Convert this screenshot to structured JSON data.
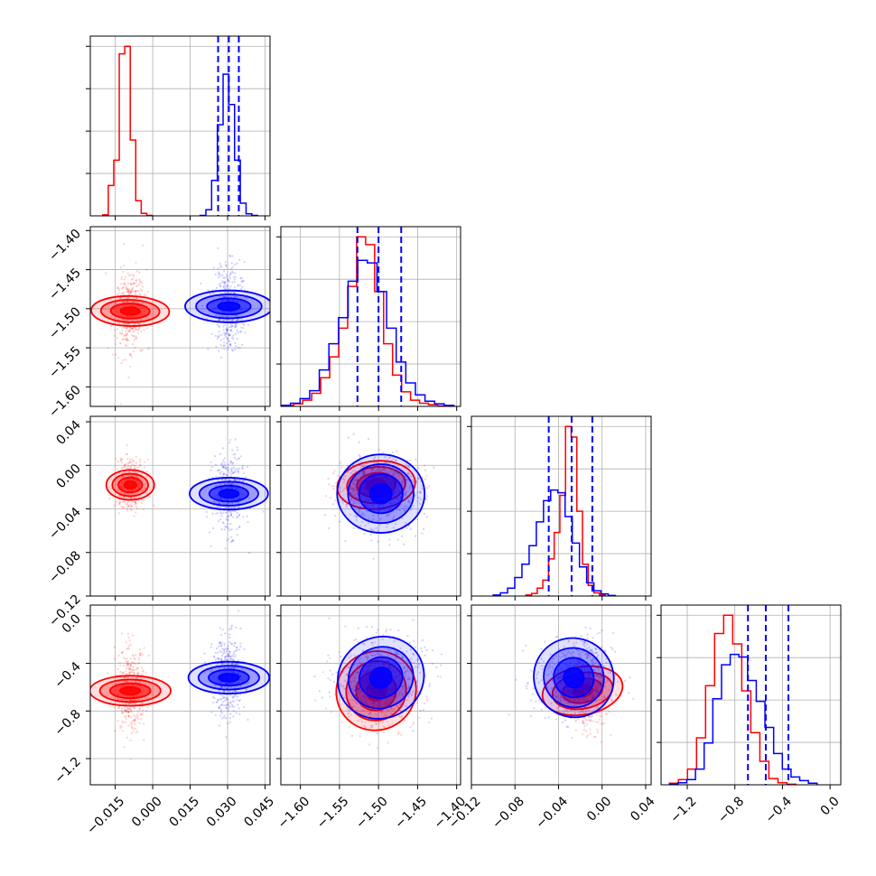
{
  "figure": {
    "type": "corner-plot",
    "n_params": 4,
    "series_colors": [
      "#ff0000",
      "#0000ff"
    ],
    "quantile_line_color": "#0000ff",
    "grid": true,
    "axis_titles": []
  },
  "chart_data": {
    "type": "corner",
    "params": [
      {
        "range": [
          -0.025,
          0.047
        ],
        "ticks": [
          -0.015,
          0.0,
          0.015,
          0.03,
          0.045
        ],
        "tick_labels": [
          "−0.015",
          "0.000",
          "0.015",
          "0.030",
          "0.045"
        ]
      },
      {
        "range": [
          -1.625,
          -1.395
        ],
        "ticks": [
          -1.6,
          -1.55,
          -1.5,
          -1.45,
          -1.4
        ],
        "tick_labels": [
          "−1.60",
          "−1.55",
          "−1.50",
          "−1.45",
          "−1.40"
        ]
      },
      {
        "range": [
          -0.12,
          0.045
        ],
        "ticks": [
          -0.12,
          -0.08,
          -0.04,
          0.0,
          0.04
        ],
        "tick_labels": [
          "−0.12",
          "−0.08",
          "−0.04",
          "0.00",
          "0.04"
        ]
      },
      {
        "range": [
          -1.42,
          0.09
        ],
        "ticks": [
          -1.2,
          -0.8,
          -0.4,
          0.0
        ],
        "tick_labels": [
          "−1.2",
          "−0.8",
          "−0.4",
          "0.0"
        ]
      }
    ],
    "series": [
      {
        "color": "#ff0000",
        "mean": [
          -0.009,
          -1.503,
          -0.018,
          -0.63
        ],
        "std": [
          0.003,
          0.025,
          0.011,
          0.17
        ],
        "corr": [
          [
            0,
            1,
            0.05
          ],
          [
            0,
            2,
            0.0
          ],
          [
            0,
            3,
            0.0
          ],
          [
            1,
            2,
            0.1
          ],
          [
            1,
            3,
            -0.15
          ],
          [
            2,
            3,
            -0.2
          ]
        ],
        "hist": [
          {
            "start": -0.02,
            "width": 0.0022,
            "counts": [
              2,
              60,
              110,
              320,
              335,
              150,
              30,
              5,
              1
            ]
          },
          {
            "start": -1.62,
            "width": 0.0115,
            "counts": [
              2,
              5,
              12,
              25,
              55,
              95,
              150,
              230,
              325,
              310,
              220,
              120,
              60,
              28,
              12,
              6,
              3,
              1
            ]
          },
          {
            "start": -0.07,
            "width": 0.0052,
            "counts": [
              2,
              5,
              15,
              30,
              70,
              120,
              190,
              320,
              300,
              160,
              60,
              20,
              6,
              2
            ]
          },
          {
            "start": -1.35,
            "width": 0.076,
            "counts": [
              3,
              10,
              30,
              90,
              190,
              290,
              325,
              270,
              180,
              100,
              45,
              12,
              4,
              1
            ]
          }
        ]
      },
      {
        "color": "#0000ff",
        "mean": [
          0.0305,
          -1.497,
          -0.026,
          -0.52
        ],
        "std": [
          0.0032,
          0.028,
          0.018,
          0.17
        ],
        "corr": [
          [
            0,
            1,
            0.0
          ],
          [
            0,
            2,
            0.0
          ],
          [
            0,
            3,
            0.0
          ],
          [
            1,
            2,
            0.0
          ],
          [
            1,
            3,
            0.1
          ],
          [
            2,
            3,
            0.1
          ]
        ],
        "hist": [
          {
            "start": 0.019,
            "width": 0.0023,
            "counts": [
              1,
              12,
              70,
              180,
              280,
              220,
              110,
              25,
              4,
              1
            ]
          },
          {
            "start": -1.625,
            "width": 0.0123,
            "counts": [
              2,
              6,
              15,
              30,
              70,
              120,
              170,
              240,
              280,
              275,
              220,
              150,
              85,
              45,
              22,
              10,
              5,
              2
            ]
          },
          {
            "start": -0.1,
            "width": 0.0066,
            "counts": [
              2,
              6,
              15,
              35,
              60,
              95,
              140,
              180,
              200,
              195,
              150,
              100,
              55,
              25,
              10,
              4,
              1
            ]
          },
          {
            "start": -1.35,
            "width": 0.073,
            "counts": [
              1,
              4,
              10,
              30,
              80,
              165,
              230,
              250,
              245,
              200,
              160,
              110,
              60,
              30,
              15,
              8,
              3
            ]
          }
        ]
      }
    ],
    "quantiles": [
      [
        0.0262,
        0.0305,
        0.0345
      ],
      [
        -1.527,
        -1.5,
        -1.471
      ],
      [
        -0.049,
        -0.028,
        -0.009
      ],
      [
        -0.69,
        -0.54,
        -0.35
      ]
    ]
  }
}
